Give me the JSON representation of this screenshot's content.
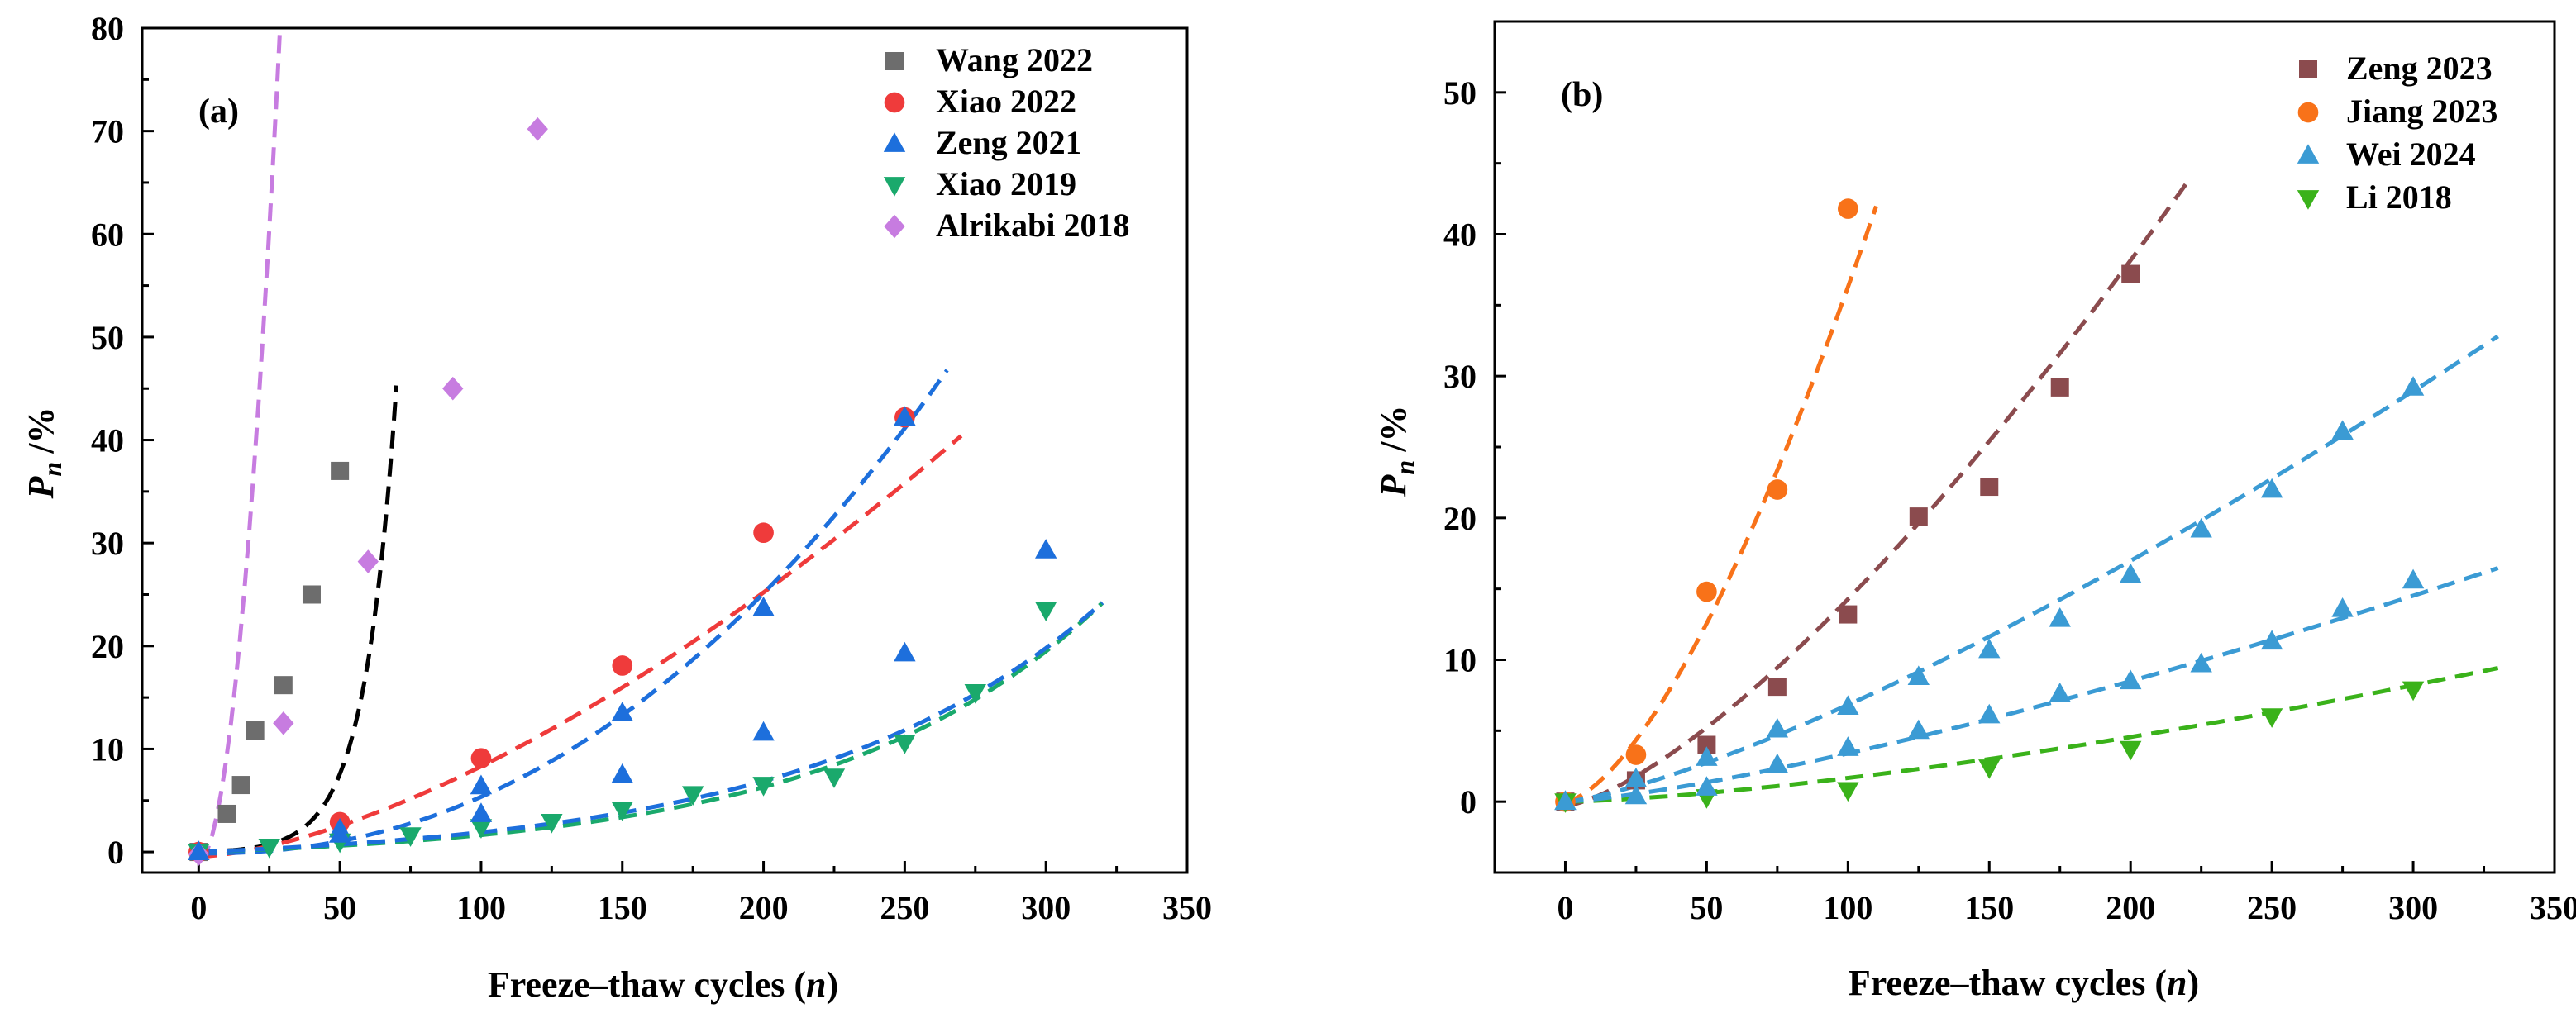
{
  "chart_data": [
    {
      "type": "scatter",
      "panel_label": "(a)",
      "xlabel_main": "Freeze–thaw cycles (",
      "xlabel_var": "n",
      "xlabel_close": ")",
      "ylabel_sym": "P",
      "ylabel_sub": "n",
      "ylabel_unit": "/%",
      "xlim": [
        -20,
        350
      ],
      "ylim": [
        -2,
        80
      ],
      "xticks": [
        0,
        50,
        100,
        150,
        200,
        250,
        300,
        350
      ],
      "yticks": [
        0,
        10,
        20,
        30,
        40,
        50,
        60,
        70,
        80
      ],
      "legend_position": "top-right",
      "grid": false,
      "fit_lines": "dashed",
      "series": [
        {
          "name": "Wang 2022",
          "color": "#6d6d6d",
          "fit_color": "#000000",
          "marker": "square",
          "x": [
            0,
            10,
            15,
            20,
            30,
            40,
            50
          ],
          "y": [
            0,
            3.7,
            6.5,
            11.8,
            16.2,
            25.0,
            37.0
          ],
          "fit": {
            "x0": 0,
            "x1": 70,
            "a": 0.09,
            "b": 0.0889
          }
        },
        {
          "name": "Xiao 2022",
          "color": "#ef3b3b",
          "fit_color": "#ef3b3b",
          "marker": "circle",
          "x": [
            0,
            50,
            100,
            150,
            200,
            250
          ],
          "y": [
            0,
            2.9,
            9.1,
            18.1,
            31.0,
            42.2
          ],
          "fit": {
            "x0": 0,
            "x1": 270,
            "a": -0.45,
            "b": 0.00696,
            "c": 1.55
          }
        },
        {
          "name": "Zeng 2021",
          "color": "#1d6fdc",
          "fit_color": "#1d6fdc",
          "marker": "triangle-up",
          "x": [
            0,
            50,
            100,
            150,
            200,
            250
          ],
          "y": [
            0,
            2.2,
            6.4,
            13.5,
            23.7,
            42.2
          ],
          "fit": {
            "x0": 0,
            "x1": 265,
            "a": -0.15,
            "b": 0.000219,
            "c": 2.2
          }
        },
        {
          "name": "Xiao 2019",
          "color": "#1aa96c",
          "fit_color": "#1aa96c",
          "marker": "triangle-down",
          "x": [
            0,
            25,
            50,
            75,
            100,
            125,
            150,
            175,
            200,
            225,
            250,
            275,
            300
          ],
          "y": [
            0,
            0.5,
            1.0,
            1.6,
            2.4,
            2.9,
            4.1,
            5.6,
            6.5,
            7.3,
            10.6,
            15.5,
            23.5
          ],
          "fit": {
            "x0": 0,
            "x1": 320,
            "a": 0.9,
            "b": 0.0104
          }
        },
        {
          "name": "Alrikabi 2018",
          "color": "#c77ce0",
          "fit_color": "#c77ce0",
          "marker": "diamond",
          "x": [
            0,
            30,
            60,
            90,
            120
          ],
          "y": [
            -0.2,
            12.5,
            28.2,
            45.0,
            70.2
          ],
          "fit": {
            "x0": 0,
            "x1": 130,
            "a": -0.8,
            "b": 0.115,
            "c": 1.95
          }
        },
        {
          "name": "Zeng 2021",
          "show_in_legend": false,
          "color": "#1d6fdc",
          "fit_color": "#1d6fdc",
          "marker": "triangle-up",
          "x": [
            0,
            50,
            100,
            150,
            200,
            250,
            300
          ],
          "y": [
            0,
            1.7,
            3.7,
            7.5,
            11.6,
            19.3,
            29.3
          ],
          "fit": {
            "x0": 0,
            "x1": 320,
            "a": 1.2,
            "b": 0.00954
          }
        }
      ]
    },
    {
      "type": "scatter",
      "panel_label": "(b)",
      "xlabel_main": "Freeze–thaw cycles (",
      "xlabel_var": "n",
      "xlabel_close": ")",
      "ylabel_sym": "P",
      "ylabel_sub": "n",
      "ylabel_unit": "/%",
      "xlim": [
        -25,
        350
      ],
      "ylim": [
        -5,
        55
      ],
      "xticks": [
        0,
        50,
        100,
        150,
        200,
        250,
        300,
        350
      ],
      "yticks": [
        0,
        10,
        20,
        30,
        40,
        50
      ],
      "legend_position": "top-right",
      "grid": false,
      "fit_lines": "dashed",
      "series": [
        {
          "name": "Zeng 2023",
          "color": "#8b4b4e",
          "fit_color": "#8b4b4e",
          "marker": "square",
          "x": [
            0,
            25,
            50,
            75,
            100,
            125,
            150,
            175,
            200
          ],
          "y": [
            0,
            1.5,
            4.0,
            8.1,
            13.2,
            20.1,
            22.2,
            29.2,
            37.2
          ],
          "fit": {
            "x0": 0,
            "x1": 220,
            "a": -0.3,
            "b": 0.0231,
            "c": 1.4
          }
        },
        {
          "name": "Jiang 2023",
          "color": "#f87219",
          "fit_color": "#f87219",
          "marker": "circle",
          "x": [
            0,
            25,
            50,
            75,
            100
          ],
          "y": [
            0,
            3.3,
            14.8,
            22.0,
            41.8
          ],
          "fit": {
            "x0": 0,
            "x1": 110,
            "a": 0,
            "b": 0.0316,
            "c": 1.53
          }
        },
        {
          "name": "Wei 2024",
          "color": "#3b9bd4",
          "fit_color": "#3b9bd4",
          "marker": "triangle-up",
          "x": [
            0,
            25,
            50,
            75,
            100,
            125,
            150,
            175,
            200,
            225,
            250,
            275,
            300
          ],
          "y": [
            0,
            1.6,
            3.1,
            5.1,
            6.7,
            8.8,
            10.7,
            12.9,
            16.0,
            19.2,
            22.0,
            26.1,
            29.2
          ],
          "fit": {
            "x0": 0,
            "x1": 330,
            "a": 0,
            "b": 0.016,
            "c": 1.315
          }
        },
        {
          "name": "Li 2018",
          "color": "#3ab21a",
          "fit_color": "#3ab21a",
          "marker": "triangle-down",
          "x": [
            0,
            50,
            100,
            150,
            200,
            250,
            300
          ],
          "y": [
            0,
            0.3,
            0.8,
            2.4,
            3.7,
            6.0,
            7.9
          ],
          "fit": {
            "x0": 0,
            "x1": 330,
            "a": 0,
            "b": 0.0021,
            "c": 1.45
          }
        },
        {
          "name": "Wei 2024",
          "show_in_legend": false,
          "color": "#3b9bd4",
          "fit_color": "#3b9bd4",
          "marker": "triangle-up",
          "x": [
            0,
            25,
            50,
            75,
            100,
            125,
            150,
            175,
            200,
            225,
            250,
            275,
            300
          ],
          "y": [
            0,
            0.4,
            1.0,
            2.6,
            3.8,
            5.0,
            6.1,
            7.6,
            8.5,
            9.7,
            11.3,
            13.6,
            15.6
          ],
          "fit": {
            "x0": 0,
            "x1": 330,
            "a": 0,
            "b": 0.0078,
            "c": 1.32
          }
        }
      ]
    }
  ]
}
